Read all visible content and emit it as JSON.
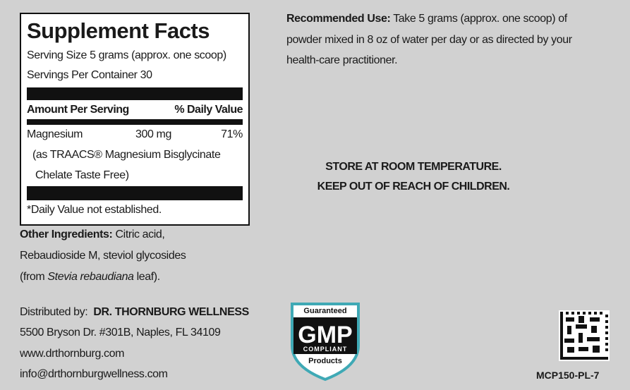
{
  "supplement_facts": {
    "title": "Supplement Facts",
    "serving_size": "Serving Size 5 grams (approx. one scoop)",
    "servings_per_container": "Servings Per Container 30",
    "amount_header": "Amount Per Serving",
    "dv_header": "% Daily Value",
    "nutrient": {
      "name": "Magnesium",
      "amount": "300 mg",
      "daily_value": "71%",
      "source_lines": [
        "(as TRAACS® Magnesium Bisglycinate",
        "Chelate Taste Free)"
      ]
    },
    "footnote": "*Daily Value not established."
  },
  "other_ingredients": {
    "label": "Other Ingredients:",
    "lines": [
      "Citric acid,",
      "Rebaudioside M, steviol glycosides"
    ],
    "last_line": {
      "before": "(from ",
      "italic": "Stevia rebaudiana",
      "after": " leaf)."
    }
  },
  "recommended_use": {
    "label": "Recommended Use:",
    "lines": [
      "Take 5 grams (approx. one scoop) of",
      "powder mixed in 8 oz of water per day or as directed by your",
      "health-care practitioner."
    ]
  },
  "warnings": [
    "STORE AT ROOM TEMPERATURE.",
    "KEEP OUT OF REACH OF CHILDREN."
  ],
  "distributor": {
    "label": "Distributed by:",
    "name": "DR. THORNBURG WELLNESS",
    "address": "5500 Bryson Dr. #301B, Naples, FL 34109",
    "website": "www.drthornburg.com",
    "email": "info@drthornburgwellness.com"
  },
  "badge": {
    "top": "Guaranteed",
    "main": "GMP",
    "sub": "COMPLIANT",
    "bottom": "Products"
  },
  "product_code": "MCP150-PL-7"
}
